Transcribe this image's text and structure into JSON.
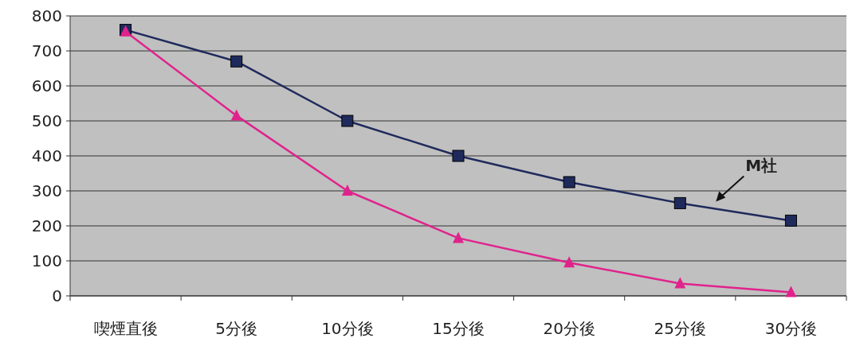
{
  "chart_data": {
    "type": "line",
    "categories": [
      "喫煙直後",
      "5分後",
      "10分後",
      "15分後",
      "20分後",
      "25分後",
      "30分後"
    ],
    "series": [
      {
        "name": "M社",
        "color": "#1f2a5c",
        "marker": "square",
        "values": [
          760,
          670,
          500,
          400,
          325,
          265,
          215
        ]
      },
      {
        "color": "#e0238c",
        "marker": "triangle",
        "values": [
          755,
          515,
          300,
          165,
          95,
          35,
          10
        ]
      }
    ],
    "ylim": [
      0,
      800
    ],
    "yticks": [
      0,
      100,
      200,
      300,
      400,
      500,
      600,
      700,
      800
    ],
    "grid": "y"
  }
}
